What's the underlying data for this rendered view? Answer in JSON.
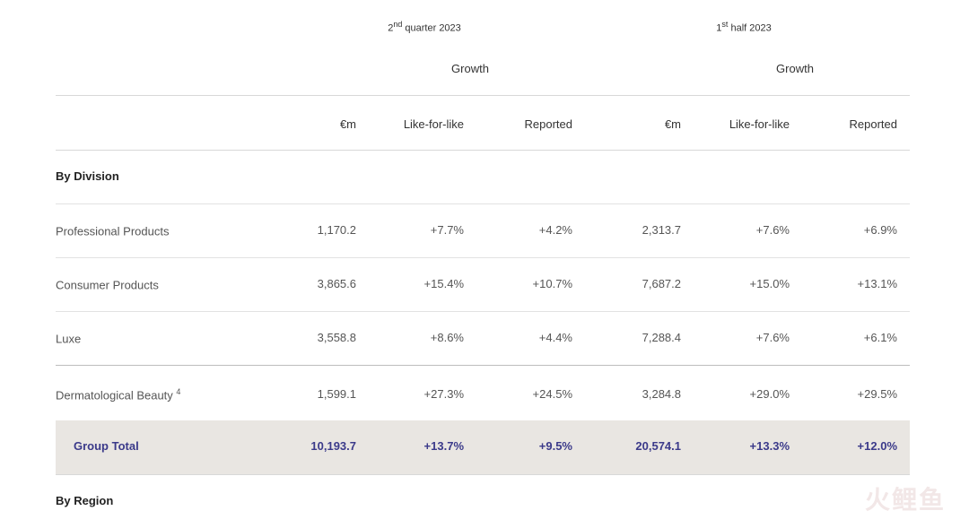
{
  "header": {
    "period1_num": "2",
    "period1_sup": "nd",
    "period1_rest": " quarter 2023",
    "period2_num": "1",
    "period2_sup": "st",
    "period2_rest": " half 2023",
    "growth_label": "Growth",
    "columns": [
      "€m",
      "Like-for-like",
      "Reported",
      "€m",
      "Like-for-like",
      "Reported"
    ]
  },
  "sections": {
    "by_division": "By Division",
    "by_region": "By Region"
  },
  "rows": [
    {
      "label": "Professional Products",
      "sup": "",
      "values": [
        "1,170.2",
        "+7.7%",
        "+4.2%",
        "2,313.7",
        "+7.6%",
        "+6.9%"
      ]
    },
    {
      "label": "Consumer Products",
      "sup": "",
      "values": [
        "3,865.6",
        "+15.4%",
        "+10.7%",
        "7,687.2",
        "+15.0%",
        "+13.1%"
      ]
    },
    {
      "label": "Luxe",
      "sup": "",
      "values": [
        "3,558.8",
        "+8.6%",
        "+4.4%",
        "7,288.4",
        "+7.6%",
        "+6.1%"
      ]
    },
    {
      "label": "Dermatological Beauty ",
      "sup": "4",
      "values": [
        "1,599.1",
        "+27.3%",
        "+24.5%",
        "3,284.8",
        "+29.0%",
        "+29.5%"
      ]
    }
  ],
  "total": {
    "label": "Group Total",
    "values": [
      "10,193.7",
      "+13.7%",
      "+9.5%",
      "20,574.1",
      "+13.3%",
      "+12.0%"
    ]
  },
  "watermark": "火鲤鱼"
}
